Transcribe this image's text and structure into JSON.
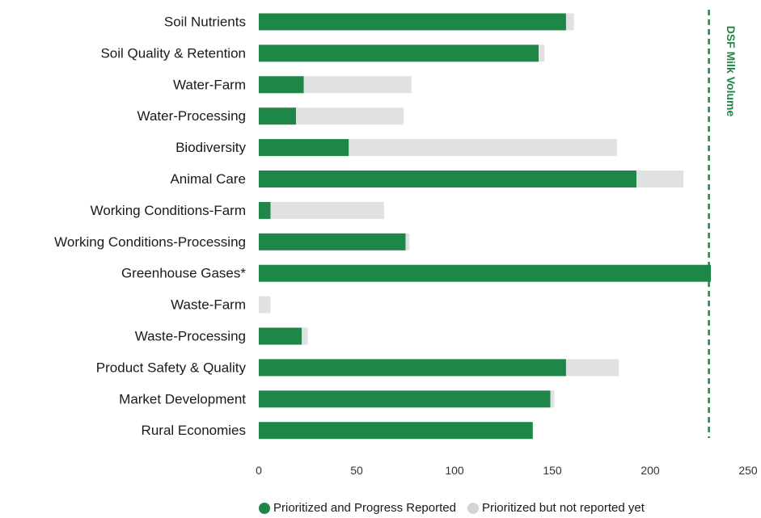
{
  "chart_data": {
    "type": "bar",
    "orientation": "horizontal",
    "stacked": true,
    "categories": [
      "Soil Nutrients",
      "Soil Quality & Retention",
      "Water-Farm",
      "Water-Processing",
      "Biodiversity",
      "Animal Care",
      "Working Conditions-Farm",
      "Working Conditions-Processing",
      "Greenhouse Gases*",
      "Waste-Farm",
      "Waste-Processing",
      "Product Safety & Quality",
      "Market Development",
      "Rural Economies"
    ],
    "series": [
      {
        "name": "Prioritized and Progress Reported",
        "color": "#1e8747",
        "values": [
          157,
          143,
          23,
          19,
          46,
          193,
          6,
          75,
          231,
          0,
          22,
          157,
          149,
          140
        ]
      },
      {
        "name": "Prioritized but not reported yet",
        "color": "#e0e1e3",
        "values": [
          4,
          3,
          55,
          55,
          137,
          24,
          58,
          2,
          0,
          6,
          3,
          27,
          2,
          0
        ]
      }
    ],
    "xlim": [
      0,
      250
    ],
    "xticks": [
      0,
      50,
      100,
      150,
      200,
      250
    ],
    "reference_line": {
      "label": "DSF Milk Volume",
      "value": 230,
      "color": "#1e8747",
      "style": "dashed"
    },
    "grid": false,
    "legend_position": "bottom"
  }
}
